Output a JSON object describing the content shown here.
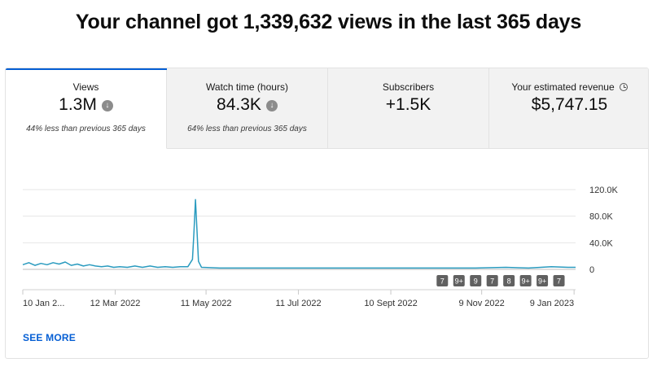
{
  "headline": "Your channel got 1,339,632 views in the last 365 days",
  "tabs": [
    {
      "label": "Views",
      "value": "1.3M",
      "note": "44% less than previous 365 days",
      "trend": "down",
      "active": true
    },
    {
      "label": "Watch time (hours)",
      "value": "84.3K",
      "note": "64% less than previous 365 days",
      "trend": "down",
      "active": false
    },
    {
      "label": "Subscribers",
      "value": "+1.5K",
      "note": "",
      "trend": "",
      "active": false
    },
    {
      "label": "Your estimated revenue",
      "value": "$5,747.15",
      "note": "",
      "trend": "",
      "active": false
    }
  ],
  "icons": {
    "trend_down": "arrow-down-circle-icon",
    "revenue": "clock-icon"
  },
  "colors": {
    "accent": "#065fd4",
    "line": "#2a9bbf",
    "badge": "#606060"
  },
  "see_more": "SEE MORE",
  "chart_data": {
    "type": "line",
    "ylim": [
      0,
      120000
    ],
    "yticks": [
      {
        "label": "120.0K",
        "value": 120000
      },
      {
        "label": "80.0K",
        "value": 80000
      },
      {
        "label": "40.0K",
        "value": 40000
      },
      {
        "label": "0",
        "value": 0
      }
    ],
    "xlim": [
      "2022-01-10",
      "2023-01-10"
    ],
    "xticks": [
      {
        "label": "10 Jan 2...",
        "date": "2022-01-10"
      },
      {
        "label": "12 Mar 2022",
        "date": "2022-03-12"
      },
      {
        "label": "11 May 2022",
        "date": "2022-05-11"
      },
      {
        "label": "11 Jul 2022",
        "date": "2022-07-11"
      },
      {
        "label": "10 Sept 2022",
        "date": "2022-09-10"
      },
      {
        "label": "9 Nov 2022",
        "date": "2022-11-09"
      },
      {
        "label": "9 Jan 2023",
        "date": "2023-01-09"
      }
    ],
    "series": [
      {
        "points": [
          [
            "2022-01-10",
            7000
          ],
          [
            "2022-01-14",
            10000
          ],
          [
            "2022-01-18",
            6000
          ],
          [
            "2022-01-22",
            9000
          ],
          [
            "2022-01-26",
            7000
          ],
          [
            "2022-01-30",
            10000
          ],
          [
            "2022-02-03",
            8000
          ],
          [
            "2022-02-07",
            11000
          ],
          [
            "2022-02-11",
            6000
          ],
          [
            "2022-02-15",
            8000
          ],
          [
            "2022-02-19",
            5000
          ],
          [
            "2022-02-23",
            7000
          ],
          [
            "2022-02-27",
            5000
          ],
          [
            "2022-03-03",
            4000
          ],
          [
            "2022-03-07",
            5000
          ],
          [
            "2022-03-11",
            3000
          ],
          [
            "2022-03-15",
            4000
          ],
          [
            "2022-03-20",
            3000
          ],
          [
            "2022-03-25",
            5000
          ],
          [
            "2022-03-30",
            3000
          ],
          [
            "2022-04-04",
            5000
          ],
          [
            "2022-04-09",
            3000
          ],
          [
            "2022-04-14",
            4000
          ],
          [
            "2022-04-19",
            3000
          ],
          [
            "2022-04-24",
            4000
          ],
          [
            "2022-04-29",
            4000
          ],
          [
            "2022-05-02",
            15000
          ],
          [
            "2022-05-03",
            55000
          ],
          [
            "2022-05-04",
            105000
          ],
          [
            "2022-05-05",
            60000
          ],
          [
            "2022-05-06",
            12000
          ],
          [
            "2022-05-08",
            3000
          ],
          [
            "2022-05-20",
            2000
          ],
          [
            "2022-06-10",
            2000
          ],
          [
            "2022-07-01",
            2000
          ],
          [
            "2022-07-25",
            2000
          ],
          [
            "2022-08-20",
            2000
          ],
          [
            "2022-09-15",
            2000
          ],
          [
            "2022-10-10",
            2000
          ],
          [
            "2022-11-05",
            2000
          ],
          [
            "2022-11-25",
            3000
          ],
          [
            "2022-12-10",
            2000
          ],
          [
            "2022-12-25",
            4000
          ],
          [
            "2023-01-05",
            3000
          ],
          [
            "2023-01-10",
            3000
          ]
        ]
      }
    ],
    "annotations": [
      {
        "label": "7",
        "date": "2022-10-14"
      },
      {
        "label": "9+",
        "date": "2022-10-25"
      },
      {
        "label": "9",
        "date": "2022-11-05"
      },
      {
        "label": "7",
        "date": "2022-11-16"
      },
      {
        "label": "8",
        "date": "2022-11-27"
      },
      {
        "label": "9+",
        "date": "2022-12-08"
      },
      {
        "label": "9+",
        "date": "2022-12-19"
      },
      {
        "label": "7",
        "date": "2022-12-30"
      }
    ],
    "grid": true
  }
}
